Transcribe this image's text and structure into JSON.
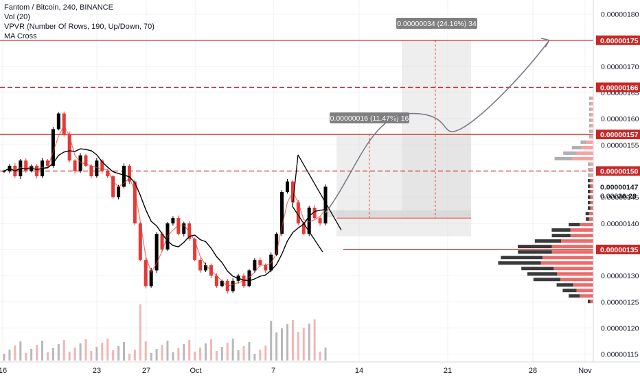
{
  "legend": {
    "line1": "Fantom / Bitcoin, 240, BINANCE",
    "line2": "Vol (20)",
    "line3": "VPVR (Number Of Rows, 190, Up/Down, 70)",
    "line4": "MA Cross"
  },
  "colors": {
    "up": "#000000",
    "down": "#e53935",
    "red_line": "#c62828",
    "grid": "#eef0f3",
    "vpvr_up": "#b0b0b0",
    "vpvr_down": "#f5a3a3"
  },
  "chart_data": {
    "type": "candlestick",
    "x_ticks": [
      "16",
      "23",
      "27",
      "Oct",
      "7",
      "14",
      "21",
      "28",
      "Nov"
    ],
    "y_ticks": [
      "0.00000115",
      "0.00000120",
      "0.00000125",
      "0.00000130",
      "0.00000135",
      "0.00000140",
      "0.00000145",
      "0.00000150",
      "0.00000155",
      "0.00000160",
      "0.00000165",
      "0.00000170",
      "0.00000175",
      "0.00000180"
    ],
    "ylim": [
      1.135e-06,
      1.827e-06
    ],
    "price_levels": [
      {
        "label": "0.00000175",
        "value": 1.75e-06,
        "style": "solid"
      },
      {
        "label": "0.00000166",
        "value": 1.66e-06,
        "style": "dashed"
      },
      {
        "label": "0.00000157",
        "value": 1.57e-06,
        "style": "solid"
      },
      {
        "label": "0.00000150",
        "value": 1.5e-06,
        "style": "dashed"
      },
      {
        "label": "0.00000135",
        "value": 1.35e-06,
        "style": "solid"
      }
    ],
    "current_price": {
      "label": "0.00000147",
      "value": 1.47e-06
    },
    "countdown": {
      "price": "0.000",
      "time": "36:23"
    },
    "measure_1": {
      "text": "0.00000016 (11.47%) 16"
    },
    "measure_2": {
      "text": "0.00000034 (24.16%) 34"
    },
    "closes": [
      1.5e-06,
      1.51e-06,
      1.49e-06,
      1.52e-06,
      1.5e-06,
      1.51e-06,
      1.49e-06,
      1.52e-06,
      1.51e-06,
      1.58e-06,
      1.61e-06,
      1.57e-06,
      1.52e-06,
      1.5e-06,
      1.53e-06,
      1.51e-06,
      1.49e-06,
      1.52e-06,
      1.5e-06,
      1.49e-06,
      1.45e-06,
      1.47e-06,
      1.51e-06,
      1.48e-06,
      1.4e-06,
      1.33e-06,
      1.28e-06,
      1.31e-06,
      1.38e-06,
      1.35e-06,
      1.4e-06,
      1.41e-06,
      1.38e-06,
      1.4e-06,
      1.37e-06,
      1.33e-06,
      1.31e-06,
      1.32e-06,
      1.3e-06,
      1.28e-06,
      1.29e-06,
      1.27e-06,
      1.29e-06,
      1.3e-06,
      1.28e-06,
      1.31e-06,
      1.33e-06,
      1.32e-06,
      1.31e-06,
      1.34e-06,
      1.38e-06,
      1.46e-06,
      1.48e-06,
      1.44e-06,
      1.4e-06,
      1.38e-06,
      1.43e-06,
      1.41e-06,
      1.4e-06,
      1.47e-06
    ]
  }
}
